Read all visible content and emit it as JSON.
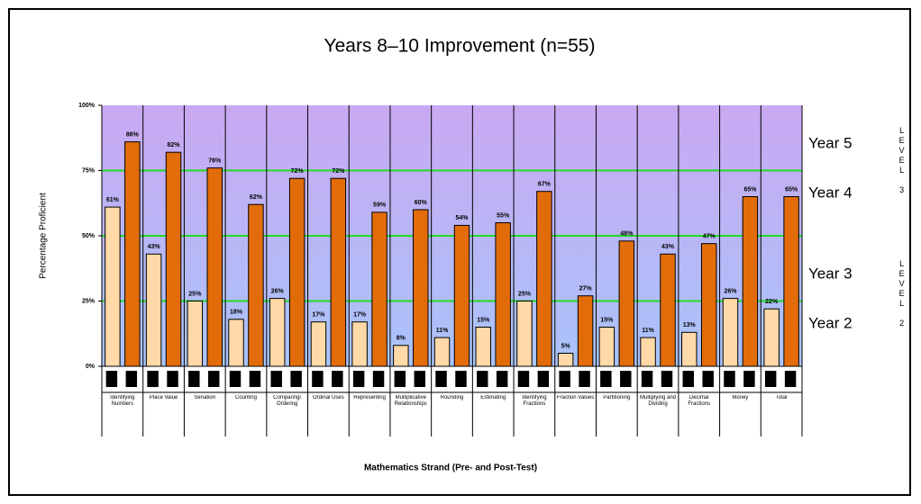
{
  "chart_data": {
    "type": "bar",
    "title": "Years 8–10 Improvement (n=55)",
    "y_label": "Percentage Proficient",
    "x_label": "Mathematics Strand (Pre- and Post-Test)",
    "categories": [
      "Identifying Numbers",
      "Place Value",
      "Seriation",
      "Counting",
      "Comparing/ Ordering",
      "Ordinal Uses",
      "Representing",
      "Multiplicative Relationships",
      "Rounding",
      "Estimating",
      "Identifying Fractions",
      "Fraction Values",
      "Partitioning",
      "Multiplying and Dividing",
      "Decimal Fractions",
      "Money",
      "Total"
    ],
    "series": [
      {
        "color": "#ffd9a8",
        "values": [
          61,
          43,
          25,
          18,
          26,
          17,
          17,
          8,
          11,
          15,
          25,
          5,
          15,
          11,
          13,
          26,
          22
        ],
        "value_labels": [
          "61%",
          "43%",
          "25%",
          "18%",
          "26%",
          "17%",
          "17%",
          "8%",
          "11%",
          "15%",
          "25%",
          "5%",
          "15%",
          "11%",
          "13%",
          "26%",
          "22%"
        ]
      },
      {
        "color": "#e36c0a",
        "values": [
          86,
          82,
          76,
          62,
          72,
          72,
          59,
          60,
          54,
          55,
          67,
          27,
          48,
          43,
          47,
          65,
          65
        ],
        "value_labels": [
          "86%",
          "82%",
          "76%",
          "62%",
          "72%",
          "72%",
          "59%",
          "60%",
          "54%",
          "55%",
          "67%",
          "27%",
          "48%",
          "43%",
          "47%",
          "65%",
          "65%"
        ]
      }
    ],
    "ylim": [
      0,
      100
    ],
    "yticks": [
      {
        "value": 0,
        "label": "0%"
      },
      {
        "value": 25,
        "label": "25%"
      },
      {
        "value": 50,
        "label": "50%"
      },
      {
        "value": 75,
        "label": "75%"
      },
      {
        "value": 100,
        "label": "100%"
      }
    ],
    "grid": true,
    "grid_color": "#22dd22",
    "annotations": [
      "Year 5",
      "Year 4",
      "Year 3",
      "Year 2",
      "LEVEL 3",
      "LEVEL 2"
    ]
  }
}
